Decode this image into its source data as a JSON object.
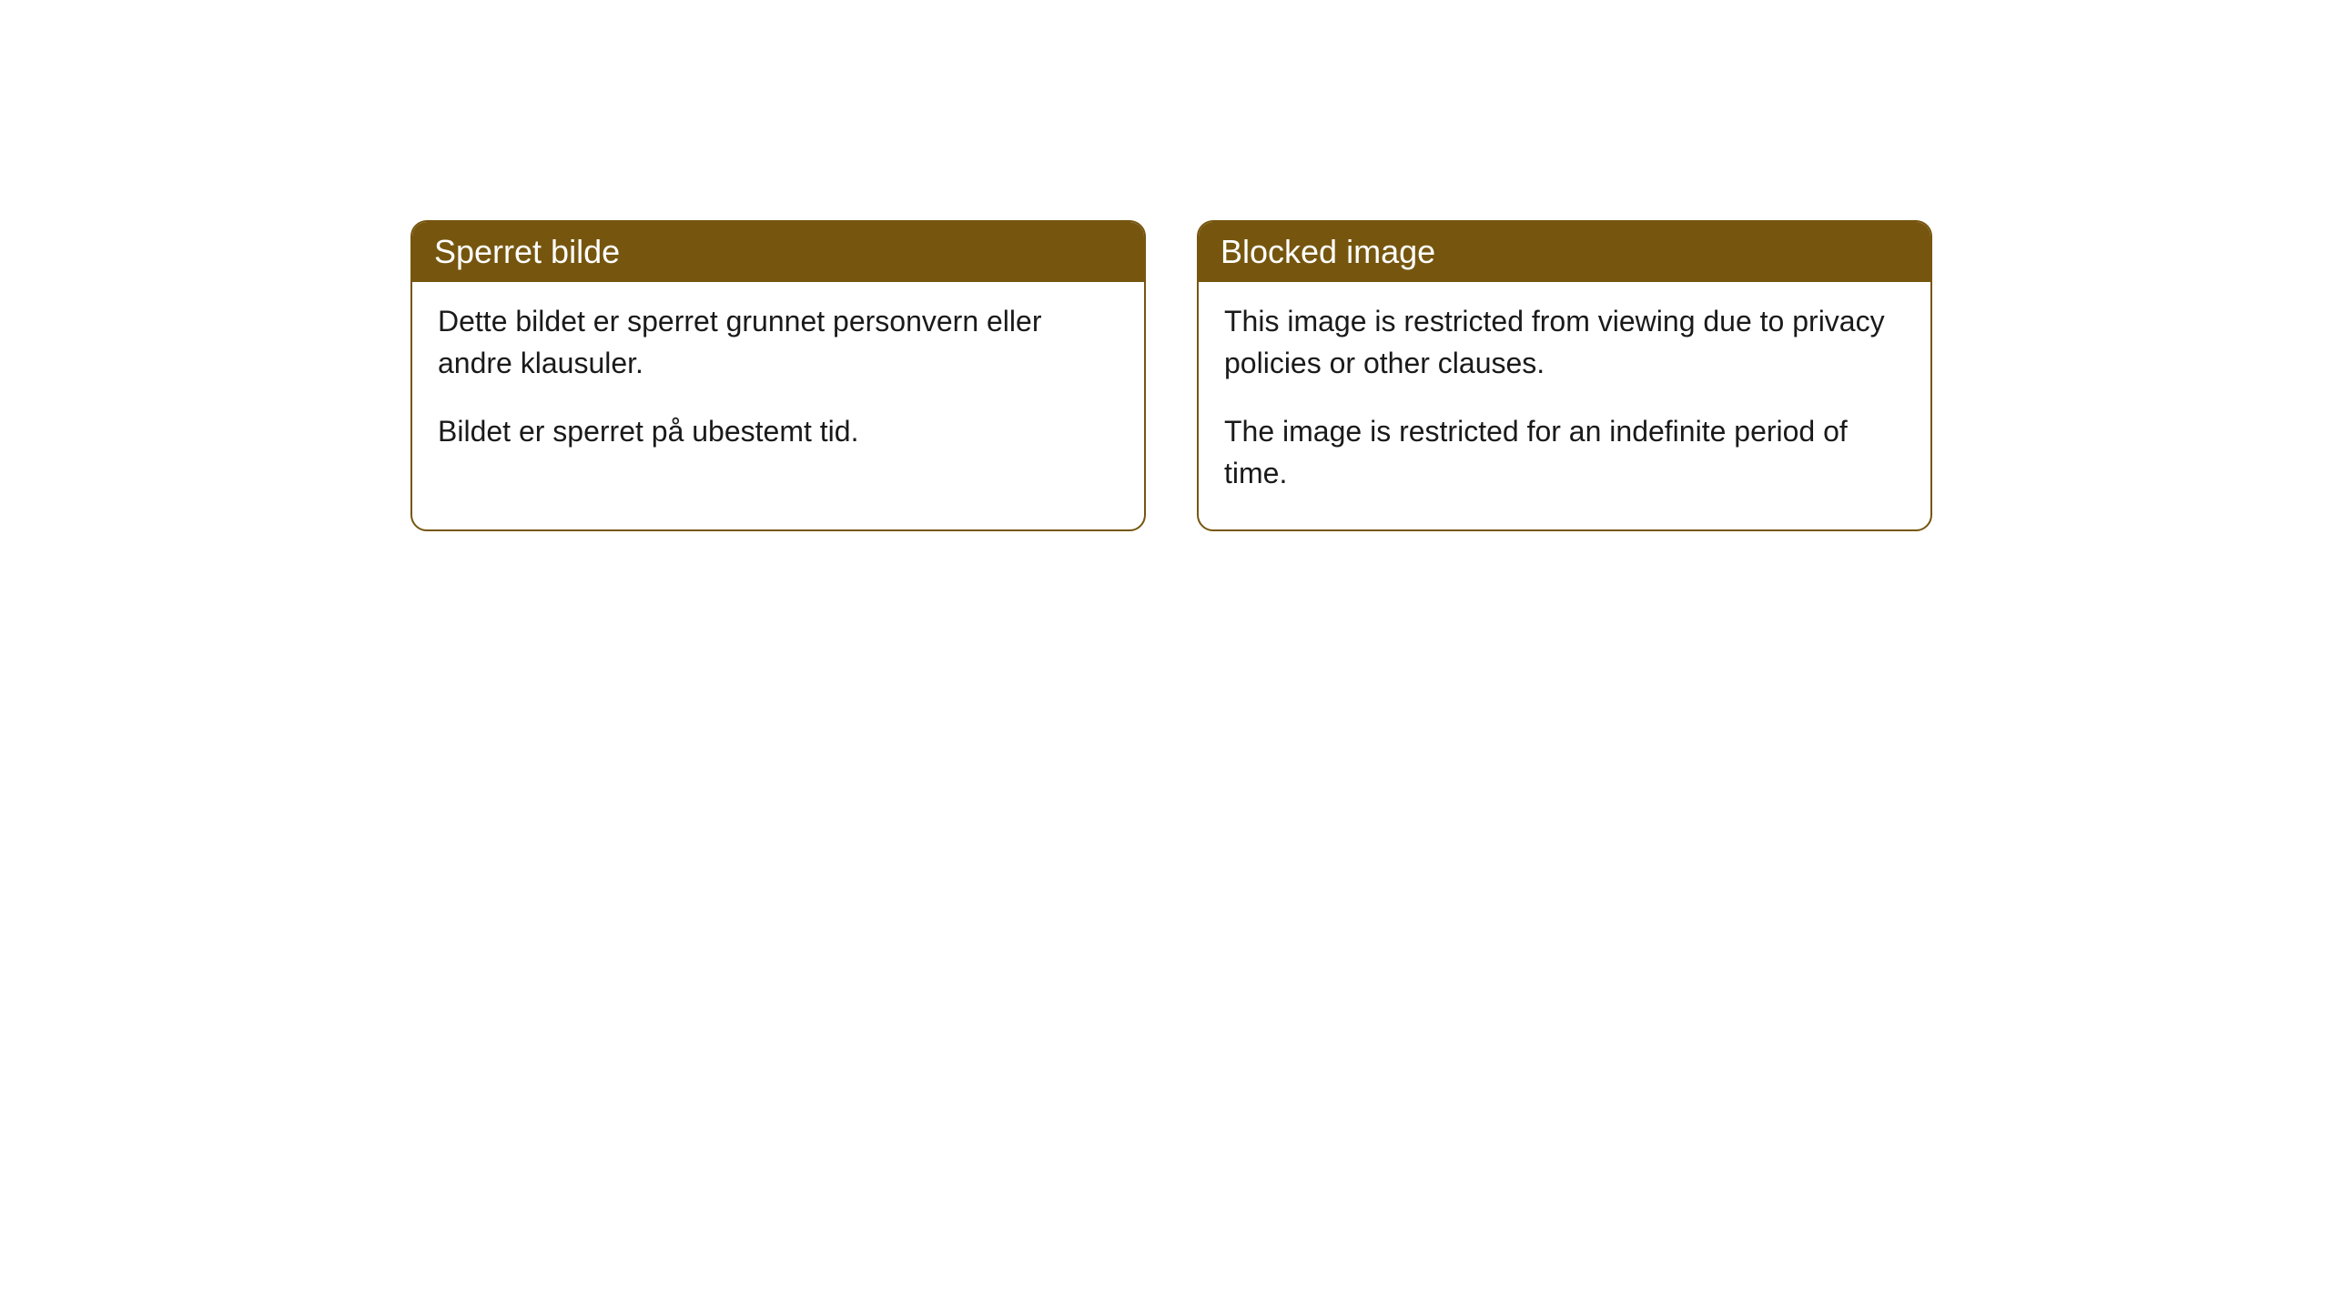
{
  "cards": [
    {
      "title": "Sperret bilde",
      "paragraph1": "Dette bildet er sperret grunnet personvern eller andre klausuler.",
      "paragraph2": "Bildet er sperret på ubestemt tid."
    },
    {
      "title": "Blocked image",
      "paragraph1": "This image is restricted from viewing due to privacy policies or other clauses.",
      "paragraph2": "The image is restricted for an indefinite period of time."
    }
  ],
  "styling": {
    "header_background": "#76560f",
    "header_text_color": "#ffffff",
    "border_color": "#76560f",
    "body_background": "#ffffff",
    "body_text_color": "#1a1a1a",
    "border_radius": 18,
    "header_fontsize": 36,
    "body_fontsize": 32
  }
}
